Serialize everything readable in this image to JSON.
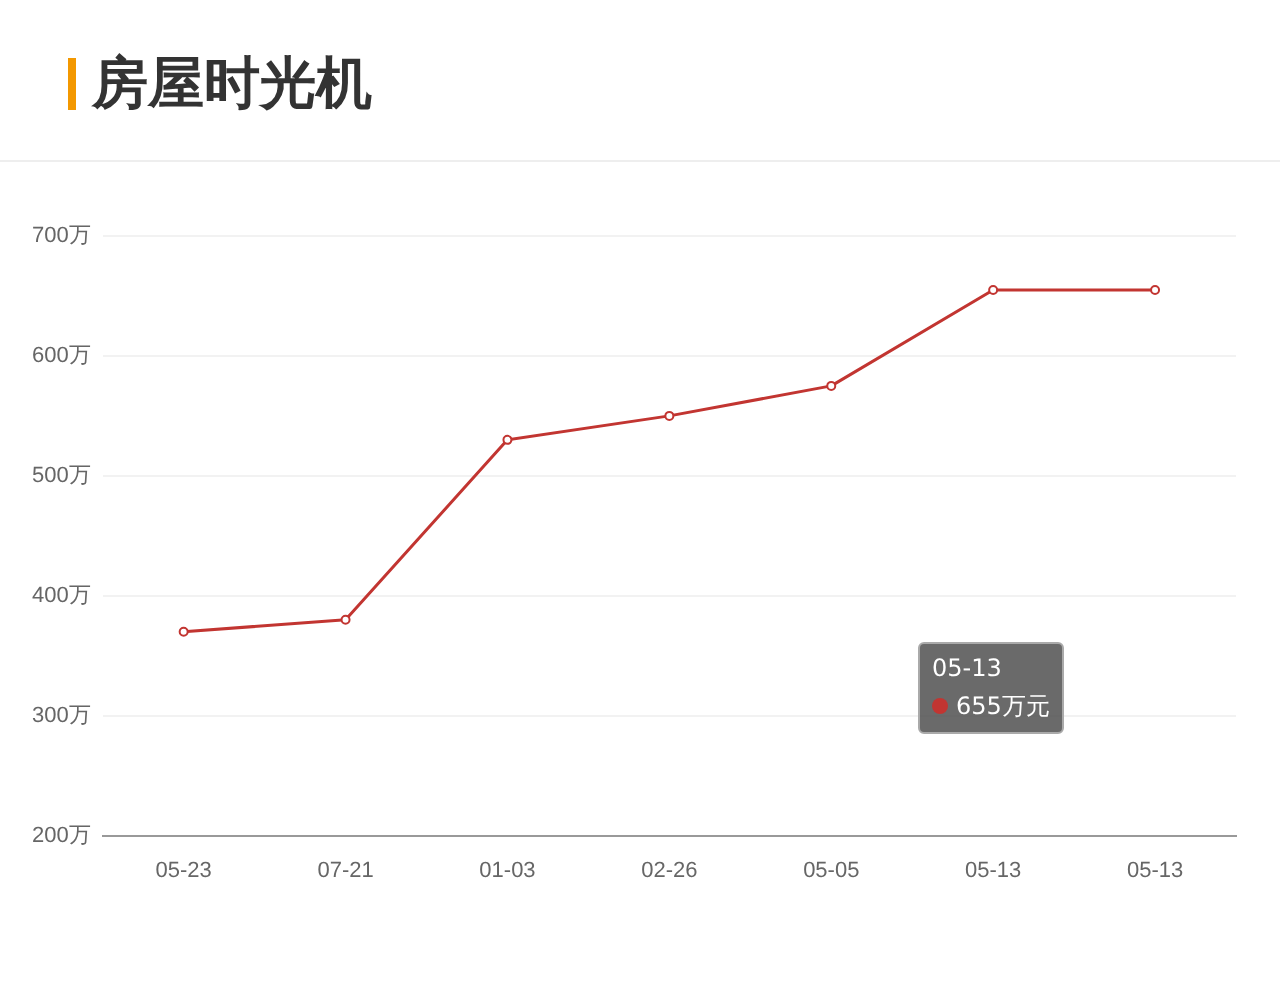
{
  "chart_data": {
    "type": "line",
    "title": "房屋时光机",
    "categories": [
      "05-23",
      "07-21",
      "01-03",
      "02-26",
      "05-05",
      "05-13",
      "05-13"
    ],
    "series": [
      {
        "color": "#c23531",
        "values": [
          370,
          380,
          530,
          550,
          575,
          655,
          655
        ]
      }
    ],
    "ylim": [
      200,
      700
    ],
    "yticks": [
      {
        "value": 200,
        "label": "200万"
      },
      {
        "value": 300,
        "label": "300万"
      },
      {
        "value": 400,
        "label": "400万"
      },
      {
        "value": 500,
        "label": "500万"
      },
      {
        "value": 600,
        "label": "600万"
      },
      {
        "value": 700,
        "label": "700万"
      }
    ],
    "grid": "y",
    "marker": "circle",
    "line_style": "solid",
    "legend": false,
    "annotations": [
      "05-13",
      "655万元"
    ]
  }
}
